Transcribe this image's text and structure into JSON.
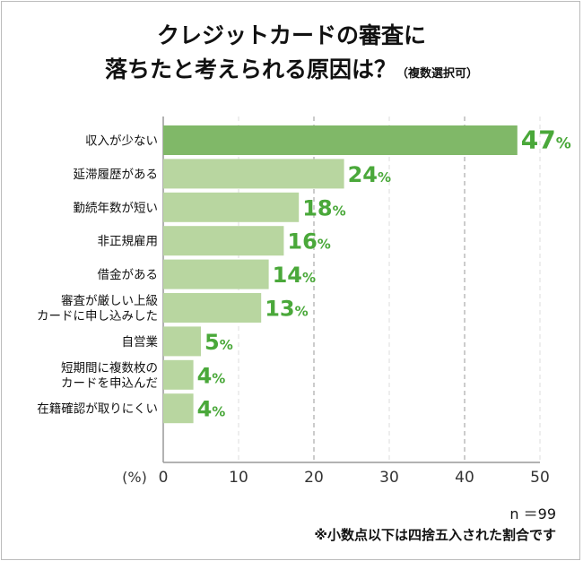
{
  "title_line1": "クレジットカードの審査に",
  "title_line2": "落ちたと考えられる原因は？",
  "title_suffix": "（複数選択可）",
  "sample": "n ＝99",
  "footnote": "※小数点以下は四捨五入された割合です",
  "colors": {
    "top_bar": "#80b868",
    "bar": "#b8d6a0",
    "value_label": "#4aa83a"
  },
  "chart_data": {
    "type": "bar",
    "orientation": "horizontal",
    "categories": [
      "収入が少ない",
      "延滞履歴がある",
      "勤続年数が短い",
      "非正規雇用",
      "借金がある",
      "審査が厳しい上級\nカードに申し込みした",
      "自営業",
      "短期間に複数枚の\nカードを申込んだ",
      "在籍確認が取りにくい"
    ],
    "values": [
      47,
      24,
      18,
      16,
      14,
      13,
      5,
      4,
      4
    ],
    "value_suffix": "%",
    "xlabel": "(%)",
    "xlim": [
      0,
      50
    ],
    "xticks": [
      0,
      10,
      20,
      30,
      40,
      50
    ],
    "grid": "vertical dashed"
  }
}
